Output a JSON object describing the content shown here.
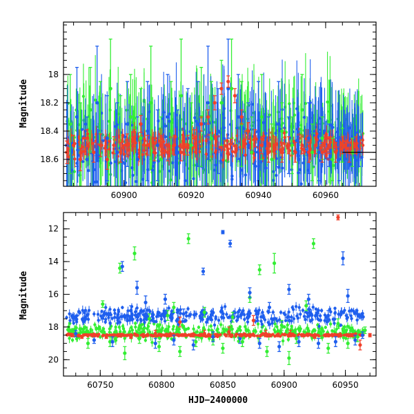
{
  "chart_data": [
    {
      "type": "scatter",
      "panel": "top",
      "title": "",
      "xlabel": "",
      "ylabel": "Magnitude",
      "xlim": [
        60882,
        60975
      ],
      "ylim": [
        18.79,
        17.63
      ],
      "y_inverted": true,
      "x_ticks": [
        60900,
        60920,
        60940,
        60960
      ],
      "x_tick_labels": [
        "60900",
        "60920",
        "60940",
        "60960"
      ],
      "y_ticks": [
        18.0,
        18.2,
        18.4,
        18.6
      ],
      "y_tick_labels": [
        "18",
        "18.2",
        "18.4",
        "18.6"
      ],
      "grid": false,
      "reference_line": {
        "y": 18.55,
        "x_start": 60965,
        "x_end": 60975,
        "color": "#000000"
      },
      "series": [
        {
          "name": "green",
          "color": "#33ee33",
          "x": [
            60884,
            60887,
            60890,
            60893,
            60896,
            60899,
            60902,
            60905,
            60908,
            60911,
            60914,
            60917,
            60920,
            60923,
            60926,
            60929,
            60932,
            60935,
            60938,
            60941,
            60944,
            60947,
            60950,
            60953,
            60956,
            60959,
            60962,
            60965,
            60968
          ],
          "y": [
            18.35,
            18.6,
            18.25,
            18.5,
            18.1,
            18.55,
            18.3,
            18.45,
            18.2,
            18.6,
            18.4,
            18.15,
            18.5,
            18.3,
            18.45,
            18.2,
            18.1,
            18.35,
            18.55,
            18.3,
            18.6,
            18.4,
            18.5,
            18.25,
            18.55,
            18.45,
            18.6,
            18.5,
            18.55
          ],
          "err": [
            0.35,
            0.4,
            0.3,
            0.45,
            0.35,
            0.4,
            0.3,
            0.35,
            0.4,
            0.3,
            0.35,
            0.4,
            0.3,
            0.35,
            0.4,
            0.3,
            0.35,
            0.3,
            0.25,
            0.3,
            0.25,
            0.2,
            0.2,
            0.25,
            0.2,
            0.15,
            0.15,
            0.12,
            0.1
          ]
        },
        {
          "name": "blue",
          "color": "#1f5fee",
          "x": [
            60883,
            60886,
            60889,
            60892,
            60895,
            60898,
            60901,
            60904,
            60907,
            60910,
            60913,
            60916,
            60919,
            60922,
            60925,
            60928,
            60931,
            60934,
            60937,
            60940,
            60943,
            60946,
            60949,
            60952,
            60955,
            60958,
            60961,
            60964,
            60967,
            60970
          ],
          "y": [
            18.5,
            18.3,
            18.6,
            18.2,
            18.45,
            18.55,
            18.35,
            18.6,
            18.4,
            18.5,
            18.3,
            18.55,
            18.45,
            18.35,
            18.2,
            18.4,
            18.1,
            18.3,
            18.5,
            18.4,
            18.55,
            18.35,
            18.5,
            18.6,
            18.45,
            18.55,
            18.5,
            18.6,
            18.5,
            18.55
          ],
          "err": [
            0.3,
            0.35,
            0.3,
            0.4,
            0.3,
            0.35,
            0.3,
            0.3,
            0.35,
            0.25,
            0.3,
            0.3,
            0.35,
            0.3,
            0.4,
            0.3,
            0.35,
            0.3,
            0.3,
            0.35,
            0.25,
            0.3,
            0.2,
            0.2,
            0.25,
            0.2,
            0.15,
            0.15,
            0.12,
            0.1
          ]
        },
        {
          "name": "red",
          "color": "#f0402a",
          "x": [
            60883,
            60885,
            60887,
            60889,
            60891,
            60893,
            60895,
            60897,
            60899,
            60901,
            60903,
            60905,
            60907,
            60909,
            60911,
            60913,
            60915,
            60917,
            60919,
            60921,
            60923,
            60925,
            60927,
            60929,
            60931,
            60933,
            60935,
            60937,
            60939,
            60941,
            60943,
            60945,
            60947,
            60949,
            60951,
            60953,
            60955,
            60957,
            60959,
            60961,
            60963,
            60965,
            60967,
            60969
          ],
          "y": [
            18.55,
            18.5,
            18.6,
            18.45,
            18.55,
            18.5,
            18.6,
            18.5,
            18.55,
            18.5,
            18.45,
            18.35,
            18.5,
            18.55,
            18.5,
            18.55,
            18.5,
            18.55,
            18.5,
            18.45,
            18.35,
            18.3,
            18.2,
            18.1,
            18.05,
            18.15,
            18.3,
            18.4,
            18.45,
            18.5,
            18.55,
            18.5,
            18.55,
            18.5,
            18.55,
            18.5,
            18.55,
            18.5,
            18.55,
            18.5,
            18.55,
            18.5,
            18.55,
            18.5
          ],
          "err": [
            0.08,
            0.07,
            0.08,
            0.06,
            0.07,
            0.08,
            0.07,
            0.06,
            0.07,
            0.08,
            0.06,
            0.06,
            0.07,
            0.06,
            0.07,
            0.06,
            0.07,
            0.06,
            0.07,
            0.06,
            0.05,
            0.05,
            0.05,
            0.04,
            0.04,
            0.05,
            0.05,
            0.06,
            0.06,
            0.06,
            0.07,
            0.06,
            0.07,
            0.06,
            0.07,
            0.06,
            0.07,
            0.06,
            0.07,
            0.06,
            0.07,
            0.06,
            0.07,
            0.06
          ]
        }
      ]
    },
    {
      "type": "scatter",
      "panel": "bottom",
      "title": "",
      "xlabel": "HJD−2400000",
      "ylabel": "Magnitude",
      "xlim": [
        60720,
        60975
      ],
      "ylim": [
        21.0,
        11.0
      ],
      "y_inverted": true,
      "x_ticks": [
        60750,
        60800,
        60850,
        60900,
        60950
      ],
      "x_tick_labels": [
        "60750",
        "60800",
        "60850",
        "60900",
        "60950"
      ],
      "y_ticks": [
        12,
        14,
        16,
        18,
        20
      ],
      "y_tick_labels": [
        "12",
        "14",
        "16",
        "18",
        "20"
      ],
      "grid": false,
      "series": [
        {
          "name": "green",
          "color": "#33ee33",
          "x": [
            60728,
            60740,
            60752,
            60758,
            60766,
            60770,
            60778,
            60782,
            60790,
            60798,
            60805,
            60810,
            60815,
            60822,
            60828,
            60835,
            60842,
            60850,
            60858,
            60866,
            60872,
            60880,
            60886,
            60892,
            60898,
            60904,
            60910,
            60918,
            60924,
            60930,
            60936,
            60944,
            60952,
            60960,
            60966
          ],
          "y": [
            18.3,
            19.0,
            16.6,
            18.9,
            14.4,
            19.6,
            13.5,
            18.7,
            17.5,
            19.2,
            17.3,
            16.8,
            19.5,
            12.6,
            18.9,
            17.1,
            18.8,
            19.3,
            17.4,
            18.9,
            16.2,
            14.5,
            19.5,
            14.1,
            17.9,
            19.9,
            18.7,
            16.7,
            12.9,
            18.4,
            19.3,
            17.8,
            19.0,
            18.6,
            18.2
          ],
          "err": [
            0.2,
            0.3,
            0.2,
            0.3,
            0.3,
            0.4,
            0.4,
            0.3,
            0.3,
            0.3,
            0.3,
            0.3,
            0.3,
            0.3,
            0.3,
            0.3,
            0.3,
            0.3,
            0.3,
            0.3,
            0.3,
            0.3,
            0.3,
            0.6,
            0.3,
            0.4,
            0.3,
            0.3,
            0.3,
            0.3,
            0.3,
            0.3,
            0.3,
            0.3,
            0.2
          ]
        },
        {
          "name": "blue",
          "color": "#1f5fee",
          "x": [
            60730,
            60745,
            60760,
            60768,
            60775,
            60780,
            60787,
            60795,
            60803,
            60810,
            60818,
            60826,
            60834,
            60842,
            60850,
            60856,
            60864,
            60872,
            60880,
            60888,
            60896,
            60904,
            60912,
            60920,
            60928,
            60936,
            60942,
            60948,
            60952,
            60958,
            60964
          ],
          "y": [
            18.4,
            18.8,
            18.9,
            14.3,
            17.0,
            15.6,
            16.5,
            19.0,
            16.3,
            18.8,
            17.2,
            19.1,
            14.6,
            18.6,
            12.2,
            12.9,
            18.7,
            15.9,
            19.0,
            16.8,
            19.2,
            15.7,
            18.9,
            16.3,
            19.0,
            17.3,
            18.9,
            13.8,
            16.1,
            18.8,
            18.5
          ],
          "err": [
            0.2,
            0.2,
            0.3,
            0.3,
            0.3,
            0.4,
            0.4,
            0.3,
            0.3,
            0.3,
            0.3,
            0.3,
            0.2,
            0.3,
            0.1,
            0.2,
            0.3,
            0.3,
            0.3,
            0.3,
            0.3,
            0.3,
            0.3,
            0.3,
            0.3,
            0.3,
            0.3,
            0.4,
            0.4,
            0.3,
            0.2
          ]
        },
        {
          "name": "red",
          "color": "#f0402a",
          "x": [
            60727,
            60735,
            60745,
            60755,
            60765,
            60775,
            60785,
            60795,
            60805,
            60815,
            60825,
            60835,
            60845,
            60855,
            60865,
            60875,
            60885,
            60895,
            60905,
            60915,
            60925,
            60935,
            60944,
            60955,
            60962,
            60970
          ],
          "y": [
            18.5,
            18.6,
            18.5,
            18.6,
            18.5,
            18.6,
            18.5,
            18.4,
            18.5,
            17.7,
            18.5,
            18.4,
            18.5,
            18.3,
            18.5,
            17.6,
            18.4,
            18.5,
            18.4,
            18.5,
            18.6,
            18.5,
            11.3,
            18.5,
            19.1,
            18.5
          ],
          "err": [
            0.1,
            0.1,
            0.1,
            0.1,
            0.1,
            0.1,
            0.1,
            0.2,
            0.1,
            0.3,
            0.1,
            0.2,
            0.1,
            0.3,
            0.1,
            0.3,
            0.2,
            0.1,
            0.2,
            0.1,
            0.1,
            0.1,
            0.15,
            0.1,
            0.3,
            0.1
          ]
        }
      ]
    }
  ]
}
